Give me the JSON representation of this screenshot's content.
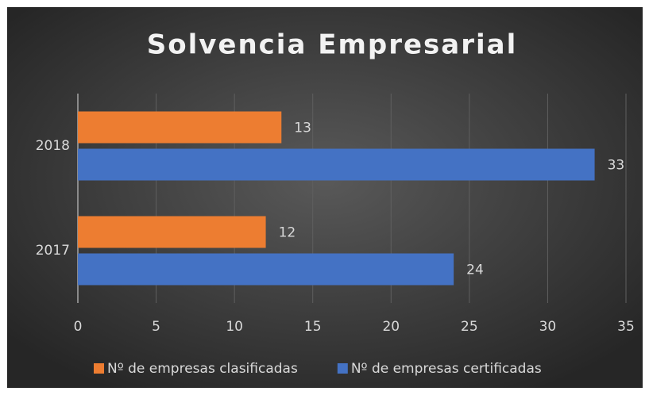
{
  "chart_data": {
    "type": "bar",
    "orientation": "horizontal",
    "title": "Solvencia Empresarial",
    "categories": [
      "2017",
      "2018"
    ],
    "series": [
      {
        "name": "Nº de empresas clasificadas",
        "color": "#ed7d31",
        "values": [
          12,
          13
        ]
      },
      {
        "name": "Nº de empresas certificadas",
        "color": "#4472c4",
        "values": [
          24,
          33
        ]
      }
    ],
    "xlim": [
      0,
      35
    ],
    "xticks": [
      0,
      5,
      10,
      15,
      20,
      25,
      30,
      35
    ],
    "grid": true,
    "legend": "bottom"
  }
}
